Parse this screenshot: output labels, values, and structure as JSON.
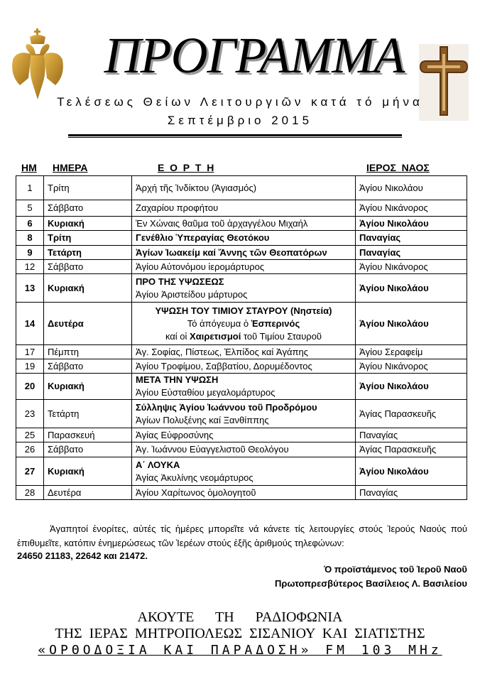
{
  "header": {
    "title": "ΠΡΟΓΡΑΜΜΑ",
    "subtitle": "Τελέσεως Θείων Λειτουργιῶν κατά τό μήνα",
    "month": "Σεπτέμβριο  2015",
    "left_emblem": "double-headed-eagle",
    "right_emblem": "crucifix"
  },
  "table": {
    "columns": [
      "ΗΜ",
      "ΗΜΕΡΑ",
      "Ε  Ο  Ρ  Τ  Η",
      "ΙΕΡΟΣ  ΝΑΟΣ"
    ],
    "rows": [
      {
        "day": "1",
        "weekday": "Τρίτη",
        "feast": [
          "Ἀρχή τῆς Ἰνδίκτου  (Ἁγιασμός)"
        ],
        "church": "Ἁγίου Νικολάου",
        "bold": false
      },
      {
        "day": "5",
        "weekday": "Σάββατο",
        "feast": [
          "Ζαχαρίου προφήτου"
        ],
        "church": "Ἁγίου Νικάνορος",
        "bold": false
      },
      {
        "day": "6",
        "weekday": "Κυριακή",
        "feast": [
          "Ἐν Χώναις θαῦμα τοῦ ἀρχαγγέλου  Μιχαήλ"
        ],
        "church": "Ἁγίου Νικολάου",
        "bold": true
      },
      {
        "day": "8",
        "weekday": "Τρίτη",
        "feast": [
          "Γενέθλιο Ὑπεραγίας Θεοτόκου"
        ],
        "church": "Παναγίας",
        "bold": true,
        "feast_bold": true
      },
      {
        "day": "9",
        "weekday": "Τετάρτη",
        "feast": [
          "Ἁγίων Ἰωακείμ καί Ἄννης τῶν Θεοπατόρων"
        ],
        "church": "Παναγίας",
        "bold": true,
        "feast_bold": true
      },
      {
        "day": "12",
        "weekday": "Σάββατο",
        "feast": [
          "Ἁγίου Αὐτονόμου ἱερομάρτυρος"
        ],
        "church": "Ἁγίου Νικάνορος",
        "bold": false
      },
      {
        "day": "13",
        "weekday": "Κυριακή",
        "feast": [
          "ΠΡΟ ΤΗΣ ΥΨΩΣΕΩΣ",
          "Ἁγίου Ἀριστείδου  μάρτυρος"
        ],
        "church": "Ἁγίου Νικολάου",
        "bold": true
      },
      {
        "day": "14",
        "weekday": "Δευτέρα",
        "feast": [
          "ΥΨΩΣΗ ΤΟΥ ΤΙΜΙΟΥ ΣΤΑΥΡΟΥ (Νηστεία)",
          "Τό ἀπόγευμα ὁ Ἑσπερινός",
          "καί οἱ Χαιρετισμοί τοῦ Τιμίου Σταυροῦ"
        ],
        "church": "Ἁγίου Νικολάου",
        "bold": true
      },
      {
        "day": "17",
        "weekday": "Πέμπτη",
        "feast": [
          "Ἁγ. Σοφίας, Πίστεως, Ἐλπίδος καί Ἀγάπης"
        ],
        "church": "Ἁγίου Σεραφείμ",
        "bold": false
      },
      {
        "day": "19",
        "weekday": "Σάββατο",
        "feast": [
          "Ἁγίου Τροφίμου, Σαββατίου, Δορυμέδοντος"
        ],
        "church": "Ἁγίου Νικάνορος",
        "bold": false
      },
      {
        "day": "20",
        "weekday": "Κυριακή",
        "feast": [
          "ΜΕΤΑ ΤΗΝ ΥΨΩΣΗ",
          "Ἁγίου Εὐσταθίου μεγαλομάρτυρος"
        ],
        "church": "Ἁγίου Νικολάου",
        "bold": true
      },
      {
        "day": "23",
        "weekday": "Τετάρτη",
        "feast": [
          "Σύλληψις Ἁγίου Ἰωάννου τοῦ Προδρόμου",
          "Ἁγίων Πολυξένης καί Ξανθίππης"
        ],
        "church": "Ἁγίας Παρασκευῆς",
        "bold": false
      },
      {
        "day": "25",
        "weekday": "Παρασκευή",
        "feast": [
          "Ἁγίας Εὐφροσύνης"
        ],
        "church": "Παναγίας",
        "bold": false
      },
      {
        "day": "26",
        "weekday": "Σάββατο",
        "feast": [
          "Ἁγ.  Ἰωάννου Εὐαγγελιστοῦ Θεολόγου"
        ],
        "church": "Ἁγίας Παρασκευῆς",
        "bold": false
      },
      {
        "day": "27",
        "weekday": "Κυριακή",
        "feast": [
          "Α΄ ΛΟΥΚΑ",
          " Ἁγίας Ἀκυλίνης νεομάρτυρος"
        ],
        "church": "Ἁγίου Νικολάου",
        "bold": true
      },
      {
        "day": "28",
        "weekday": "Δευτέρα",
        "feast": [
          "Ἁγίου Χαρίτωνος ὁμολογητοῦ"
        ],
        "church": "Παναγίας",
        "bold": false
      }
    ]
  },
  "notice": {
    "text": "Ἀγαπητοί ἐνορίτες, αὐτές τίς ἡμέρες μπορεῖτε νά κάνετε τίς λειτουργίες στούς Ἱερούς Ναούς πού ἐπιθυμεῖτε, κατόπιν ἐνημερώσεως τῶν Ἱερέων στούς ἑξῆς ἀριθμούς τηλεφώνων:",
    "phones": "24650 21183, 22642 και 21472."
  },
  "signature": {
    "line1": "Ὁ προϊστάμενος τοῦ Ἱεροῦ Ναοῦ",
    "line2": "Πρωτοπρεσβύτερος Βασίλειος Λ. Βασιλείου"
  },
  "radio": {
    "line1": "ΑΚΟΥΤΕ   ΤΗ   ΡΑΔΙΟΦΩΝΙΑ",
    "line2": "ΤΗΣ ΙΕΡΑΣ ΜΗΤΡΟΠΟΛΕΩΣ ΣΙΣΑΝΙΟΥ ΚΑΙ ΣΙΑΤΙΣΤΗΣ",
    "line3": "«ΟΡΘΟΔΟΞΙΑ ΚΑΙ ΠΑΡΑΔΟΣΗ»  FM 103 MHz"
  }
}
